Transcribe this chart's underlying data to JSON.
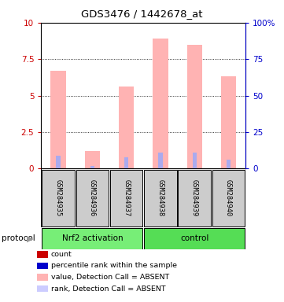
{
  "title": "GDS3476 / 1442678_at",
  "samples": [
    "GSM284935",
    "GSM284936",
    "GSM284937",
    "GSM284938",
    "GSM284939",
    "GSM284940"
  ],
  "groups": [
    "Nrf2 activation",
    "Nrf2 activation",
    "Nrf2 activation",
    "control",
    "control",
    "control"
  ],
  "group_colors": {
    "Nrf2 activation": "#77ee77",
    "control": "#55dd55"
  },
  "pink_bar_values": [
    6.7,
    1.2,
    5.6,
    8.9,
    8.5,
    6.3
  ],
  "blue_bar_values": [
    0.9,
    0.15,
    0.75,
    1.1,
    1.1,
    0.6
  ],
  "ylim_left": [
    0,
    10
  ],
  "ylim_right": [
    0,
    100
  ],
  "yticks_left": [
    0,
    2.5,
    5.0,
    7.5,
    10
  ],
  "ytick_labels_left": [
    "0",
    "2.5",
    "5",
    "7.5",
    "10"
  ],
  "ytick_labels_right": [
    "0",
    "25",
    "50",
    "75",
    "100%"
  ],
  "left_axis_color": "#cc0000",
  "right_axis_color": "#0000cc",
  "pink_color": "#ffb3b3",
  "blue_color": "#aaaaee",
  "legend_items": [
    {
      "label": "count",
      "color": "#cc0000"
    },
    {
      "label": "percentile rank within the sample",
      "color": "#0000cc"
    },
    {
      "label": "value, Detection Call = ABSENT",
      "color": "#ffb3b3"
    },
    {
      "label": "rank, Detection Call = ABSENT",
      "color": "#ccccff"
    }
  ],
  "sample_box_color": "#cccccc",
  "protocol_label": "protocol",
  "bg_color": "#ffffff",
  "fig_w": 3.61,
  "fig_h": 3.84,
  "dpi": 100
}
